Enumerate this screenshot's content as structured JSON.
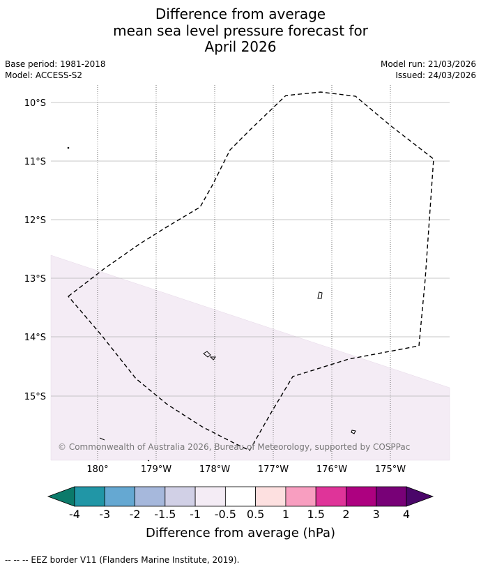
{
  "title": {
    "line1": "Difference from average",
    "line2": "mean sea level pressure forecast for",
    "line3": "April 2026"
  },
  "meta": {
    "base_period": "Base period: 1981-2018",
    "model": "Model: ACCESS-S2",
    "model_run": "Model run: 21/03/2026",
    "issued": "Issued: 24/03/2026"
  },
  "map": {
    "lat_labels": [
      "10°S",
      "11°S",
      "12°S",
      "13°S",
      "14°S",
      "15°S"
    ],
    "lon_labels": [
      "180°",
      "179°W",
      "178°W",
      "177°W",
      "176°W",
      "175°W"
    ],
    "copyright": "© Commonwealth of Australia 2026, Bureau of Meteorology, supported by COSPPac",
    "anomaly_fill_color": "#f4ecf5",
    "shaded_class": "-1 to -0.5"
  },
  "colorbar": {
    "labels": [
      "-4",
      "-3",
      "-2",
      "-1.5",
      "-1",
      "-0.5",
      "0.5",
      "1",
      "1.5",
      "2",
      "3",
      "4"
    ],
    "colors": [
      "#0b7a6a",
      "#2196a6",
      "#65a8d2",
      "#a6b8dc",
      "#d1d0e6",
      "#f4ecf5",
      "#ffffff",
      "#fde0e0",
      "#f89ec0",
      "#df3499",
      "#ad0180",
      "#780177",
      "#4a0669"
    ],
    "title": "Difference from average (hPa)"
  },
  "footer": {
    "legend_text": "--  --  -- EEZ border V11 (Flanders Marine Institute, 2019)."
  }
}
